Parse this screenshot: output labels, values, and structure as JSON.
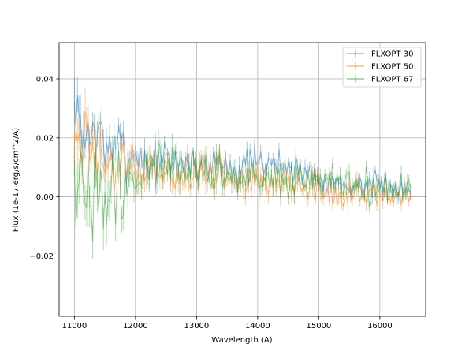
{
  "chart_data": {
    "type": "line",
    "title": "",
    "xlabel": "Wavelength (A)",
    "ylabel": "Flux (1e-17 erg/s/cm^2/A)",
    "xlim": [
      10750,
      16750
    ],
    "ylim": [
      -0.0405,
      0.0523
    ],
    "x_ticks": [
      {
        "value": 11000,
        "label": "11000"
      },
      {
        "value": 12000,
        "label": "12000"
      },
      {
        "value": 13000,
        "label": "13000"
      },
      {
        "value": 14000,
        "label": "14000"
      },
      {
        "value": 15000,
        "label": "15000"
      },
      {
        "value": 16000,
        "label": "16000"
      }
    ],
    "y_ticks": [
      {
        "value": -0.02,
        "label": "−0.02"
      },
      {
        "value": 0.0,
        "label": "0.00"
      },
      {
        "value": 0.02,
        "label": "0.02"
      },
      {
        "value": 0.04,
        "label": "0.04"
      }
    ],
    "grid": true,
    "legend_position": "top-right",
    "x_range": [
      11000,
      16500
    ],
    "x_step": 25,
    "series": [
      {
        "name": "FLXOPT 30",
        "color": "#1f77b4",
        "baseline": [
          [
            11000,
            0.028
          ],
          [
            11100,
            0.025
          ],
          [
            11200,
            0.022
          ],
          [
            11400,
            0.02
          ],
          [
            11700,
            0.017
          ],
          [
            12000,
            0.014
          ],
          [
            12500,
            0.012
          ],
          [
            13000,
            0.011
          ],
          [
            14000,
            0.01
          ],
          [
            14200,
            0.012
          ],
          [
            15000,
            0.007
          ],
          [
            15400,
            0.004
          ],
          [
            16000,
            0.003
          ],
          [
            16500,
            0.002
          ]
        ],
        "spread": [
          [
            11000,
            0.01
          ],
          [
            11500,
            0.006
          ],
          [
            12500,
            0.004
          ],
          [
            13000,
            0.004
          ],
          [
            15000,
            0.003
          ],
          [
            16500,
            0.003
          ]
        ],
        "seed": 7
      },
      {
        "name": "FLXOPT 50",
        "color": "#ff7f0e",
        "baseline": [
          [
            11000,
            0.026
          ],
          [
            11100,
            0.02
          ],
          [
            11300,
            0.014
          ],
          [
            11600,
            0.01
          ],
          [
            12000,
            0.01
          ],
          [
            12500,
            0.008
          ],
          [
            13000,
            0.008
          ],
          [
            14000,
            0.006
          ],
          [
            15000,
            0.003
          ],
          [
            15400,
            0.0
          ],
          [
            16000,
            0.001
          ],
          [
            16500,
            0.001
          ]
        ],
        "spread": [
          [
            11000,
            0.012
          ],
          [
            11500,
            0.006
          ],
          [
            12500,
            0.005
          ],
          [
            14000,
            0.004
          ],
          [
            16500,
            0.003
          ]
        ],
        "seed": 19
      },
      {
        "name": "FLXOPT 67",
        "color": "#2ca02c",
        "baseline": [
          [
            11000,
            0.0
          ],
          [
            11100,
            -0.004
          ],
          [
            11300,
            0.0
          ],
          [
            11600,
            0.004
          ],
          [
            12000,
            0.006
          ],
          [
            12400,
            0.012
          ],
          [
            12700,
            0.012
          ],
          [
            13000,
            0.009
          ],
          [
            14000,
            0.006
          ],
          [
            15000,
            0.005
          ],
          [
            16000,
            0.003
          ],
          [
            16500,
            0.002
          ]
        ],
        "spread": [
          [
            11000,
            0.012
          ],
          [
            11500,
            0.009
          ],
          [
            12000,
            0.006
          ],
          [
            12700,
            0.005
          ],
          [
            14000,
            0.004
          ],
          [
            16500,
            0.003
          ]
        ],
        "seed": 41
      }
    ]
  }
}
